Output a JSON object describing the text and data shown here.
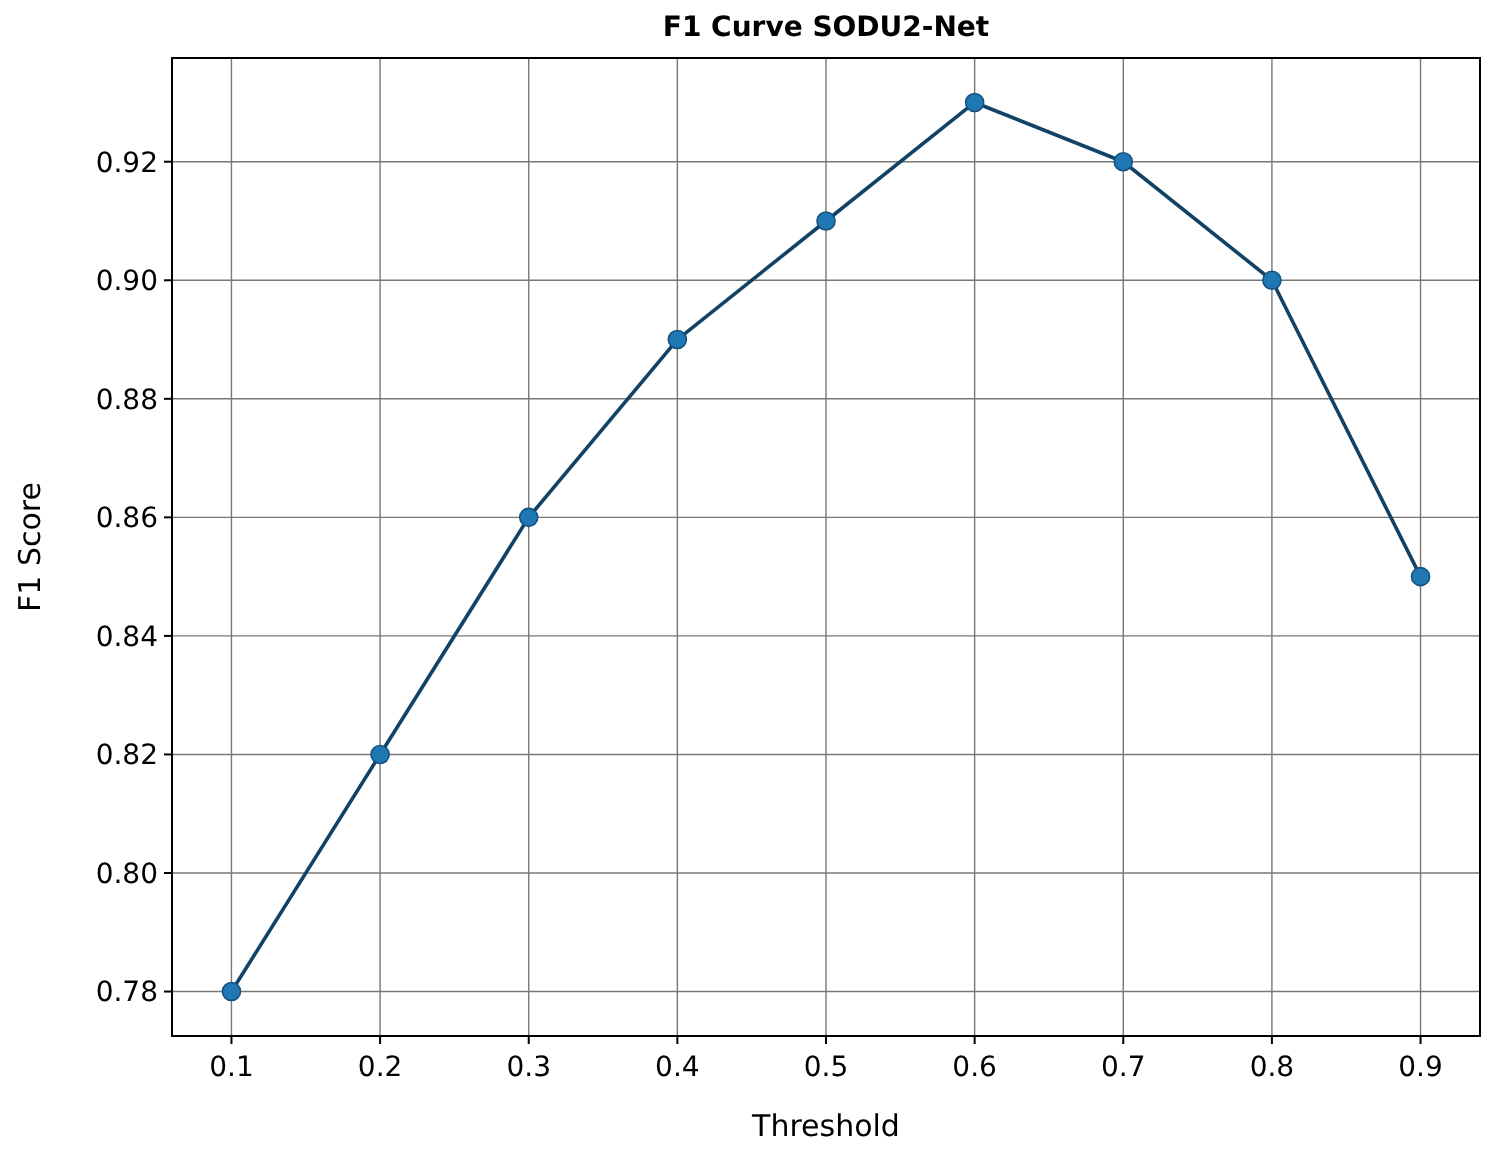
{
  "chart_data": {
    "type": "line",
    "title": "F1 Curve SODU2-Net",
    "xlabel": "Threshold",
    "ylabel": "F1 Score",
    "x": [
      0.1,
      0.2,
      0.3,
      0.4,
      0.5,
      0.6,
      0.7,
      0.8,
      0.9
    ],
    "series": [
      {
        "color": "#1f77b4",
        "values": [
          0.78,
          0.82,
          0.86,
          0.89,
          0.91,
          0.93,
          0.92,
          0.9,
          0.85
        ]
      }
    ],
    "marker": "circle",
    "xlim": [
      0.06,
      0.94
    ],
    "xticks": [
      0.1,
      0.2,
      0.3,
      0.4,
      0.5,
      0.6,
      0.7,
      0.8,
      0.9
    ],
    "ylim": [
      0.7725,
      0.9375
    ],
    "yticks": [
      {
        "value": 0.78,
        "label": "0.78"
      },
      {
        "value": 0.8,
        "label": "0.80"
      },
      {
        "value": 0.82,
        "label": "0.82"
      },
      {
        "value": 0.84,
        "label": "0.84"
      },
      {
        "value": 0.86,
        "label": "0.86"
      },
      {
        "value": 0.88,
        "label": "0.88"
      },
      {
        "value": 0.9,
        "label": "0.90"
      },
      {
        "value": 0.92,
        "label": "0.92"
      }
    ],
    "grid": true
  }
}
